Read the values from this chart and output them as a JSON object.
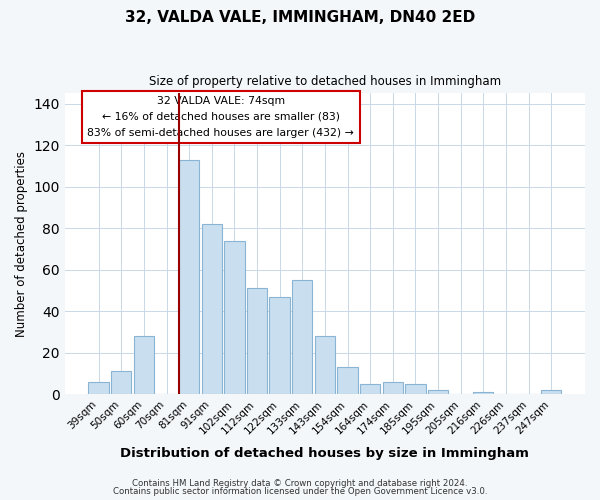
{
  "title": "32, VALDA VALE, IMMINGHAM, DN40 2ED",
  "subtitle": "Size of property relative to detached houses in Immingham",
  "xlabel": "Distribution of detached houses by size in Immingham",
  "ylabel": "Number of detached properties",
  "bar_color": "#c9dff0",
  "bar_edge_color": "#8ab4d4",
  "highlight_color": "#990000",
  "categories": [
    "39sqm",
    "50sqm",
    "60sqm",
    "70sqm",
    "81sqm",
    "91sqm",
    "102sqm",
    "112sqm",
    "122sqm",
    "133sqm",
    "143sqm",
    "154sqm",
    "164sqm",
    "174sqm",
    "185sqm",
    "195sqm",
    "205sqm",
    "216sqm",
    "226sqm",
    "237sqm",
    "247sqm"
  ],
  "values": [
    6,
    11,
    28,
    0,
    113,
    82,
    74,
    51,
    47,
    55,
    28,
    13,
    5,
    6,
    5,
    2,
    0,
    1,
    0,
    0,
    2
  ],
  "highlight_bar_index": 4,
  "annotation_line1": "32 VALDA VALE: 74sqm",
  "annotation_line2": "← 16% of detached houses are smaller (83)",
  "annotation_line3": "83% of semi-detached houses are larger (432) →",
  "ylim": [
    0,
    145
  ],
  "yticks": [
    0,
    20,
    40,
    60,
    80,
    100,
    120,
    140
  ],
  "footer1": "Contains HM Land Registry data © Crown copyright and database right 2024.",
  "footer2": "Contains public sector information licensed under the Open Government Licence v3.0.",
  "background_color": "#f4f7fa",
  "plot_background": "#ffffff"
}
